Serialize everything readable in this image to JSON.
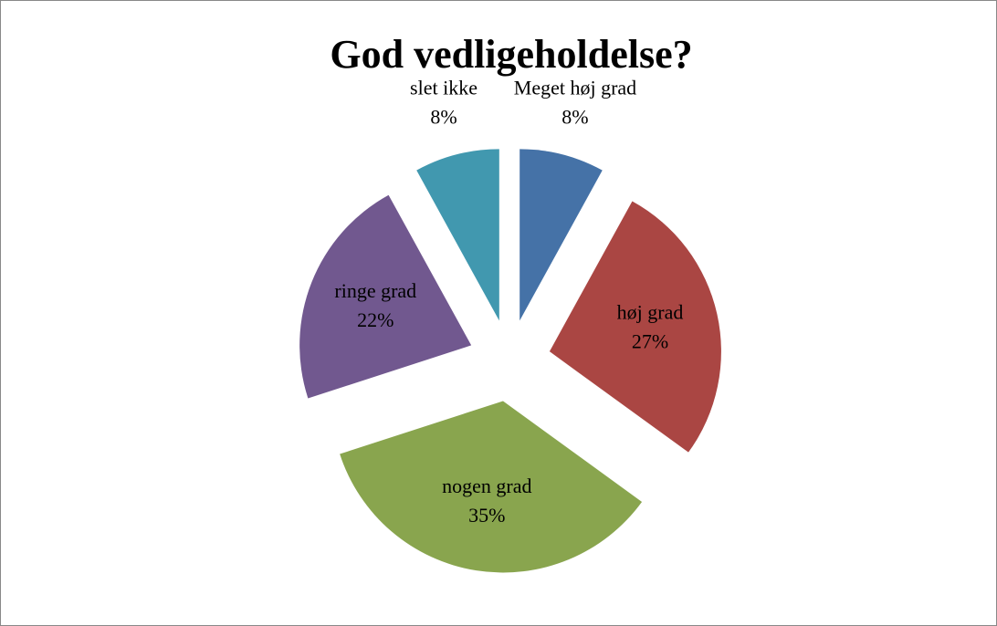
{
  "chart_data": {
    "type": "pie",
    "title": "God vedligeholdelse?",
    "categories": [
      "Meget høj grad",
      "høj grad",
      "nogen grad",
      "ringe grad",
      "slet ikke"
    ],
    "values": [
      8,
      27,
      35,
      22,
      8
    ],
    "value_labels": [
      "8%",
      "27%",
      "35%",
      "22%",
      "8%"
    ],
    "colors": [
      "#4572a7",
      "#aa4643",
      "#89a54e",
      "#71588f",
      "#4198af"
    ]
  }
}
